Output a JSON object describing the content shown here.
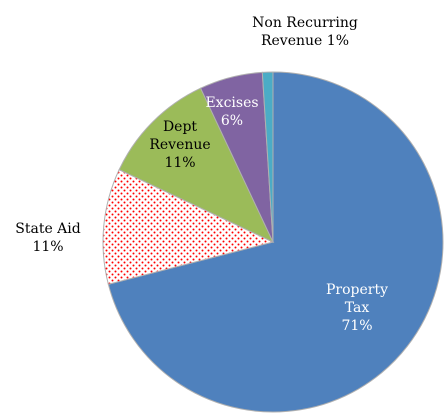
{
  "chart_data": {
    "type": "pie",
    "categories": [
      "Property Tax",
      "State Aid",
      "Dept Revenue",
      "Excises",
      "Non Recurring Revenue"
    ],
    "values": [
      71,
      11,
      11,
      6,
      1
    ],
    "value_labels": [
      "71%",
      "11%",
      "11%",
      "6%",
      "1%"
    ],
    "colors": [
      "#4f81bd",
      "#ff0000",
      "#9bbb59",
      "#8064a2",
      "#4bacc6"
    ],
    "patterns": [
      "solid",
      "dots",
      "solid",
      "solid",
      "solid"
    ]
  }
}
